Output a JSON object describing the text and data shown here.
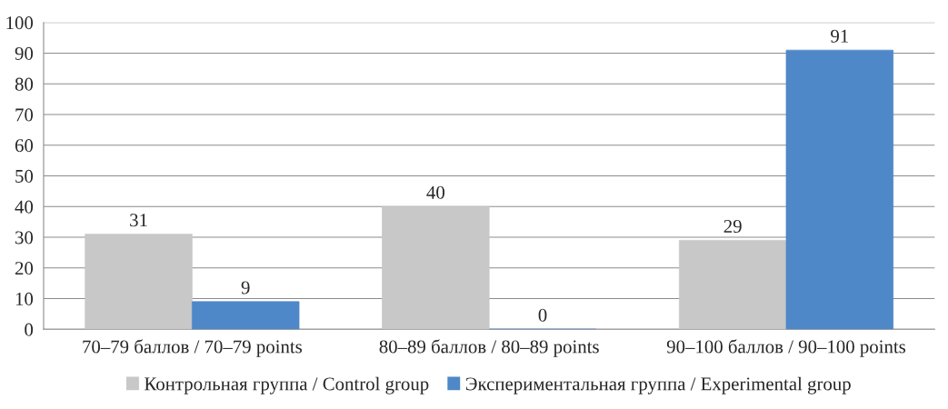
{
  "chart_data": {
    "type": "bar",
    "categories": [
      "70–79 баллов / 70–79 points",
      "80–89 баллов / 80–89 points",
      "90–100 баллов / 90–100 points"
    ],
    "series": [
      {
        "name": "Контрольная группа / Control group",
        "color": "#c8c8c8",
        "values": [
          31,
          40,
          29
        ]
      },
      {
        "name": "Экспериментальная группа / Experimental group",
        "color": "#4f88c8",
        "values": [
          9,
          0,
          91
        ]
      }
    ],
    "ylim": [
      0,
      100
    ],
    "yticks": [
      0,
      10,
      20,
      30,
      40,
      50,
      60,
      70,
      80,
      90,
      100
    ],
    "grid": "y",
    "legend": "bottom",
    "data_labels": true
  }
}
